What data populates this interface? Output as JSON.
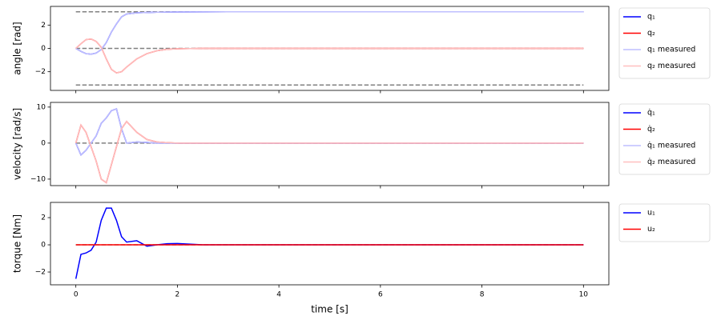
{
  "chart_data": [
    {
      "type": "line",
      "ylabel": "angle [rad]",
      "x": [
        0,
        0.1,
        0.2,
        0.3,
        0.4,
        0.5,
        0.6,
        0.7,
        0.8,
        0.9,
        1.0,
        1.2,
        1.4,
        1.6,
        1.8,
        2.0,
        2.5,
        3,
        4,
        5,
        6,
        7,
        8,
        9,
        10
      ],
      "series": [
        {
          "name": "q₁",
          "color": "#0000ff",
          "values": [
            0,
            -0.25,
            -0.45,
            -0.5,
            -0.4,
            -0.1,
            0.5,
            1.4,
            2.1,
            2.7,
            2.95,
            3.05,
            3.08,
            3.1,
            3.11,
            3.12,
            3.13,
            3.14,
            3.14,
            3.14,
            3.14,
            3.14,
            3.14,
            3.14,
            3.14
          ]
        },
        {
          "name": "q₂",
          "color": "#ff0000",
          "values": [
            0,
            0.4,
            0.75,
            0.8,
            0.6,
            0.1,
            -0.9,
            -1.8,
            -2.1,
            -2.0,
            -1.6,
            -0.9,
            -0.45,
            -0.2,
            -0.08,
            -0.03,
            0,
            0,
            0,
            0,
            0,
            0,
            0,
            0,
            0
          ]
        },
        {
          "name": "q₁ measured",
          "color": "#bfbfff",
          "values": [
            0,
            -0.25,
            -0.45,
            -0.5,
            -0.4,
            -0.1,
            0.5,
            1.4,
            2.1,
            2.7,
            2.95,
            3.05,
            3.08,
            3.1,
            3.11,
            3.12,
            3.13,
            3.14,
            3.14,
            3.14,
            3.14,
            3.14,
            3.14,
            3.14,
            3.14
          ]
        },
        {
          "name": "q₂ measured",
          "color": "#ffbfbf",
          "values": [
            0,
            0.4,
            0.75,
            0.8,
            0.6,
            0.1,
            -0.9,
            -1.8,
            -2.1,
            -2.0,
            -1.6,
            -0.9,
            -0.45,
            -0.2,
            -0.08,
            -0.03,
            0,
            0,
            0,
            0,
            0,
            0,
            0,
            0,
            0
          ]
        }
      ],
      "hlines": [
        3.14,
        0,
        -3.14
      ],
      "hline_color": "#808080",
      "xlim": [
        -0.5,
        10.5
      ],
      "ylim": [
        -3.6,
        3.6
      ],
      "yticks": [
        {
          "value": -2,
          "label": "−2"
        },
        0,
        2
      ]
    },
    {
      "type": "line",
      "ylabel": "velocity [rad/s]",
      "x": [
        0,
        0.1,
        0.2,
        0.3,
        0.4,
        0.5,
        0.6,
        0.7,
        0.8,
        0.9,
        1.0,
        1.2,
        1.4,
        1.6,
        1.8,
        2.0,
        2.5,
        3,
        4,
        5,
        6,
        7,
        8,
        9,
        10
      ],
      "series": [
        {
          "name": "q̇₁",
          "color": "#0000ff",
          "values": [
            0,
            -3.3,
            -2,
            0,
            2,
            5.5,
            7,
            9,
            9.5,
            4,
            0,
            0.3,
            0.2,
            0,
            0,
            0,
            0,
            0,
            0,
            0,
            0,
            0,
            0,
            0,
            0
          ]
        },
        {
          "name": "q̇₂",
          "color": "#ff0000",
          "values": [
            0,
            5,
            3,
            -1,
            -5,
            -10,
            -11,
            -6,
            -1,
            4,
            6,
            3,
            1,
            0.3,
            0.1,
            0,
            0,
            0,
            0,
            0,
            0,
            0,
            0,
            0,
            0
          ]
        },
        {
          "name": "q̇₁ measured",
          "color": "#bfbfff",
          "values": [
            0,
            -3.3,
            -2,
            0,
            2,
            5.5,
            7,
            9,
            9.5,
            4,
            0,
            0.3,
            0.2,
            0,
            0,
            0,
            0,
            0,
            0,
            0,
            0,
            0,
            0,
            0,
            0
          ]
        },
        {
          "name": "q̇₂ measured",
          "color": "#ffbfbf",
          "values": [
            0,
            5,
            3,
            -1,
            -5,
            -10,
            -11,
            -6,
            -1,
            4,
            6,
            3,
            1,
            0.3,
            0.1,
            0,
            0,
            0,
            0,
            0,
            0,
            0,
            0,
            0,
            0
          ]
        }
      ],
      "hlines": [
        0
      ],
      "hline_color": "#808080",
      "xlim": [
        -0.5,
        10.5
      ],
      "ylim": [
        -11.8,
        11.3
      ],
      "yticks": [
        {
          "value": -10,
          "label": "−10"
        },
        0,
        10
      ]
    },
    {
      "type": "line",
      "ylabel": "torque [Nm]",
      "xlabel": "time [s]",
      "x": [
        0,
        0.1,
        0.2,
        0.3,
        0.4,
        0.5,
        0.6,
        0.7,
        0.8,
        0.9,
        1.0,
        1.2,
        1.4,
        1.6,
        1.8,
        2.0,
        2.5,
        3,
        4,
        5,
        6,
        7,
        8,
        9,
        10
      ],
      "series": [
        {
          "name": "u₁",
          "color": "#0000ff",
          "values": [
            -2.5,
            -0.7,
            -0.6,
            -0.4,
            0.2,
            1.8,
            2.7,
            2.7,
            1.8,
            0.6,
            0.2,
            0.3,
            -0.1,
            0,
            0.08,
            0.1,
            0,
            0,
            0,
            0,
            0,
            0,
            0,
            0,
            0
          ]
        },
        {
          "name": "u₂",
          "color": "#ff0000",
          "values": [
            0,
            0,
            0,
            0,
            0,
            0,
            0,
            0,
            0,
            0,
            0,
            0,
            0,
            0,
            0,
            0,
            0,
            0,
            0,
            0,
            0,
            0,
            0,
            0,
            0
          ]
        }
      ],
      "hlines": [
        0
      ],
      "hline_color": "#808080",
      "xlim": [
        -0.5,
        10.5
      ],
      "xticks": [
        0,
        2,
        4,
        6,
        8,
        10
      ],
      "ylim": [
        -2.94,
        3.12
      ],
      "yticks": [
        {
          "value": -2,
          "label": "−2"
        },
        0,
        2
      ]
    }
  ]
}
